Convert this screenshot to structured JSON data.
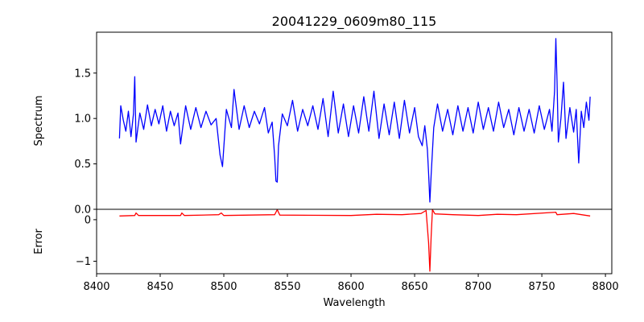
{
  "chart_data": [
    {
      "type": "line",
      "title": "20041229_0609m80_115",
      "xlabel": "",
      "ylabel": "Spectrum",
      "xlim": [
        8400,
        8805
      ],
      "ylim": [
        0.0,
        1.95
      ],
      "yticks": [
        "0.0",
        "0.5",
        "1.0",
        "1.5"
      ],
      "ytick_values": [
        0.0,
        0.5,
        1.0,
        1.5
      ],
      "grid": false,
      "color": "#0000ff",
      "anchors": [
        [
          8418,
          0.78
        ],
        [
          8419,
          1.14
        ],
        [
          8421,
          0.98
        ],
        [
          8423,
          0.86
        ],
        [
          8425,
          1.08
        ],
        [
          8427,
          0.8
        ],
        [
          8429,
          1.05
        ],
        [
          8430,
          1.46
        ],
        [
          8431,
          0.74
        ],
        [
          8434,
          1.06
        ],
        [
          8437,
          0.88
        ],
        [
          8440,
          1.15
        ],
        [
          8443,
          0.92
        ],
        [
          8446,
          1.1
        ],
        [
          8449,
          0.94
        ],
        [
          8452,
          1.14
        ],
        [
          8455,
          0.86
        ],
        [
          8458,
          1.08
        ],
        [
          8461,
          0.92
        ],
        [
          8464,
          1.06
        ],
        [
          8466,
          0.72
        ],
        [
          8470,
          1.14
        ],
        [
          8474,
          0.88
        ],
        [
          8478,
          1.12
        ],
        [
          8482,
          0.9
        ],
        [
          8486,
          1.08
        ],
        [
          8490,
          0.93
        ],
        [
          8494,
          1.0
        ],
        [
          8497,
          0.6
        ],
        [
          8499,
          0.47
        ],
        [
          8502,
          1.1
        ],
        [
          8506,
          0.9
        ],
        [
          8508,
          1.32
        ],
        [
          8512,
          0.88
        ],
        [
          8516,
          1.14
        ],
        [
          8520,
          0.9
        ],
        [
          8524,
          1.08
        ],
        [
          8528,
          0.94
        ],
        [
          8532,
          1.12
        ],
        [
          8535,
          0.84
        ],
        [
          8538,
          0.96
        ],
        [
          8540,
          0.58
        ],
        [
          8541,
          0.31
        ],
        [
          8542,
          0.3
        ],
        [
          8543,
          0.7
        ],
        [
          8546,
          1.05
        ],
        [
          8550,
          0.92
        ],
        [
          8554,
          1.2
        ],
        [
          8558,
          0.86
        ],
        [
          8562,
          1.1
        ],
        [
          8566,
          0.92
        ],
        [
          8570,
          1.14
        ],
        [
          8574,
          0.88
        ],
        [
          8578,
          1.22
        ],
        [
          8582,
          0.8
        ],
        [
          8586,
          1.3
        ],
        [
          8590,
          0.84
        ],
        [
          8594,
          1.16
        ],
        [
          8598,
          0.8
        ],
        [
          8602,
          1.14
        ],
        [
          8606,
          0.84
        ],
        [
          8610,
          1.24
        ],
        [
          8614,
          0.86
        ],
        [
          8618,
          1.3
        ],
        [
          8622,
          0.78
        ],
        [
          8626,
          1.16
        ],
        [
          8630,
          0.82
        ],
        [
          8634,
          1.18
        ],
        [
          8638,
          0.78
        ],
        [
          8642,
          1.2
        ],
        [
          8646,
          0.84
        ],
        [
          8650,
          1.12
        ],
        [
          8653,
          0.8
        ],
        [
          8656,
          0.7
        ],
        [
          8658,
          0.92
        ],
        [
          8660,
          0.66
        ],
        [
          8661,
          0.4
        ],
        [
          8662,
          0.08
        ],
        [
          8663,
          0.38
        ],
        [
          8665,
          0.9
        ],
        [
          8668,
          1.16
        ],
        [
          8672,
          0.86
        ],
        [
          8676,
          1.1
        ],
        [
          8680,
          0.82
        ],
        [
          8684,
          1.14
        ],
        [
          8688,
          0.86
        ],
        [
          8692,
          1.12
        ],
        [
          8696,
          0.84
        ],
        [
          8700,
          1.18
        ],
        [
          8704,
          0.88
        ],
        [
          8708,
          1.12
        ],
        [
          8712,
          0.86
        ],
        [
          8716,
          1.18
        ],
        [
          8720,
          0.9
        ],
        [
          8724,
          1.1
        ],
        [
          8728,
          0.82
        ],
        [
          8732,
          1.12
        ],
        [
          8736,
          0.86
        ],
        [
          8740,
          1.1
        ],
        [
          8744,
          0.84
        ],
        [
          8748,
          1.14
        ],
        [
          8752,
          0.88
        ],
        [
          8756,
          1.1
        ],
        [
          8758,
          0.86
        ],
        [
          8760,
          1.3
        ],
        [
          8761,
          1.88
        ],
        [
          8762,
          1.4
        ],
        [
          8763,
          0.74
        ],
        [
          8765,
          1.0
        ],
        [
          8767,
          1.4
        ],
        [
          8769,
          0.78
        ],
        [
          8772,
          1.12
        ],
        [
          8775,
          0.85
        ],
        [
          8777,
          1.1
        ],
        [
          8779,
          0.51
        ],
        [
          8781,
          1.08
        ],
        [
          8783,
          0.9
        ],
        [
          8785,
          1.18
        ],
        [
          8787,
          0.98
        ],
        [
          8788,
          1.24
        ]
      ]
    },
    {
      "type": "line",
      "title": "",
      "xlabel": "Wavelength",
      "ylabel": "Error",
      "xlim": [
        8400,
        8805
      ],
      "ylim": [
        -1.3,
        0.25
      ],
      "yticks": [
        "0",
        "−1"
      ],
      "ytick_values": [
        0,
        -1
      ],
      "xticks": [
        "8400",
        "8450",
        "8500",
        "8550",
        "8600",
        "8650",
        "8700",
        "8750",
        "8800"
      ],
      "xtick_values": [
        8400,
        8450,
        8500,
        8550,
        8600,
        8650,
        8700,
        8750,
        8800
      ],
      "grid": false,
      "color": "#ff0000",
      "anchors": [
        [
          8418,
          0.09
        ],
        [
          8430,
          0.1
        ],
        [
          8431,
          0.16
        ],
        [
          8433,
          0.1
        ],
        [
          8466,
          0.1
        ],
        [
          8467,
          0.16
        ],
        [
          8469,
          0.1
        ],
        [
          8496,
          0.12
        ],
        [
          8498,
          0.16
        ],
        [
          8500,
          0.1
        ],
        [
          8540,
          0.12
        ],
        [
          8542,
          0.24
        ],
        [
          8544,
          0.11
        ],
        [
          8600,
          0.1
        ],
        [
          8620,
          0.13
        ],
        [
          8640,
          0.12
        ],
        [
          8655,
          0.15
        ],
        [
          8659,
          0.22
        ],
        [
          8661,
          -0.55
        ],
        [
          8662,
          -1.24
        ],
        [
          8663,
          -0.4
        ],
        [
          8664,
          0.24
        ],
        [
          8666,
          0.14
        ],
        [
          8680,
          0.12
        ],
        [
          8700,
          0.1
        ],
        [
          8715,
          0.13
        ],
        [
          8730,
          0.12
        ],
        [
          8761,
          0.18
        ],
        [
          8762,
          0.12
        ],
        [
          8775,
          0.15
        ],
        [
          8788,
          0.09
        ]
      ]
    }
  ]
}
